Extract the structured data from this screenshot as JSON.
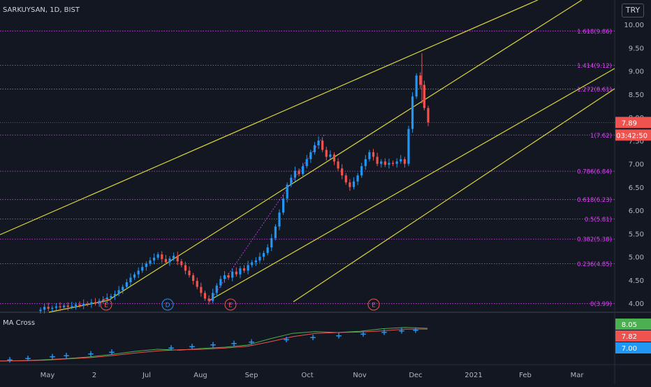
{
  "header": {
    "symbol": "SARKUYSAN, 1D, BIST",
    "currency": "TRY"
  },
  "indicator": {
    "label": "MA Cross",
    "values": [
      "8.05",
      "7.82",
      "7.00"
    ]
  },
  "price": {
    "last": "7.89",
    "countdown": "03:42:50"
  },
  "colors": {
    "background": "#131722",
    "up": "#2196f3",
    "down": "#ef5350",
    "channel": "#d9d63a",
    "fib": "#e040fb",
    "ma_fast": "#4caf50",
    "ma_slow": "#ef5350",
    "cross": "#2196f3",
    "axis_text": "#b2b5be"
  },
  "chart_data": {
    "type": "candlestick",
    "y_axis": {
      "ticks": [
        "10.00",
        "9.50",
        "9.00",
        "8.50",
        "8.00",
        "7.50",
        "7.00",
        "6.50",
        "6.00",
        "5.50",
        "5.00",
        "4.50",
        "4.00"
      ],
      "ylim": [
        3.9,
        10.5
      ]
    },
    "x_axis": {
      "ticks": [
        "May",
        "2",
        "Jul",
        "Aug",
        "Sep",
        "Oct",
        "Nov",
        "Dec",
        "2021",
        "Feb",
        "Mar"
      ]
    },
    "fib_levels": [
      {
        "label": "1.618(9.86)",
        "value": 9.86
      },
      {
        "label": "1.414(9.12)",
        "value": 9.12
      },
      {
        "label": "1.272(8.61)",
        "value": 8.61
      },
      {
        "label": "1(7.62)",
        "value": 7.62
      },
      {
        "label": "0.786(6.84)",
        "value": 6.84
      },
      {
        "label": "0.618(6.23)",
        "value": 6.23
      },
      {
        "label": "0.5(5.81)",
        "value": 5.81
      },
      {
        "label": "0.382(5.38)",
        "value": 5.38
      },
      {
        "label": "0.236(4.85)",
        "value": 4.85
      },
      {
        "label": "0(3.99)",
        "value": 3.99
      }
    ],
    "events": [
      "E",
      "D",
      "E",
      "E"
    ],
    "close_series": [
      3.86,
      3.92,
      3.88,
      3.9,
      3.93,
      3.91,
      3.95,
      3.92,
      3.94,
      3.97,
      3.95,
      3.99,
      3.98,
      4.02,
      4.0,
      4.05,
      4.08,
      4.12,
      4.15,
      4.2,
      4.28,
      4.35,
      4.45,
      4.55,
      4.62,
      4.7,
      4.78,
      4.85,
      4.92,
      4.98,
      5.05,
      4.95,
      4.88,
      4.96,
      5.02,
      4.9,
      4.82,
      4.7,
      4.6,
      4.48,
      4.35,
      4.22,
      4.1,
      4.05,
      4.22,
      4.38,
      4.52,
      4.6,
      4.55,
      4.68,
      4.62,
      4.75,
      4.7,
      4.82,
      4.88,
      4.92,
      5.0,
      5.08,
      5.2,
      5.4,
      5.65,
      5.95,
      6.25,
      6.55,
      6.7,
      6.85,
      6.78,
      6.95,
      7.1,
      7.25,
      7.4,
      7.5,
      7.3,
      7.15,
      7.2,
      7.05,
      6.9,
      6.75,
      6.6,
      6.5,
      6.62,
      6.75,
      6.95,
      7.1,
      7.25,
      7.15,
      7.0,
      7.05,
      6.98,
      7.02,
      7.0,
      7.05,
      7.1,
      7.0,
      7.75,
      8.45,
      8.9,
      8.7,
      8.2,
      7.89
    ],
    "ma_fast": [
      0.2,
      0.3,
      0.5,
      0.8,
      1.2,
      1.8,
      2.5,
      3.0,
      2.8,
      3.2,
      3.5,
      4.0,
      5.5,
      6.8,
      7.2,
      7.0,
      7.3,
      7.9,
      8.2,
      8.0
    ],
    "ma_slow": [
      0.2,
      0.25,
      0.4,
      0.7,
      1.0,
      1.5,
      2.1,
      2.6,
      2.9,
      3.0,
      3.3,
      3.7,
      4.8,
      6.0,
      6.8,
      7.0,
      7.1,
      7.4,
      7.8,
      7.82
    ]
  }
}
